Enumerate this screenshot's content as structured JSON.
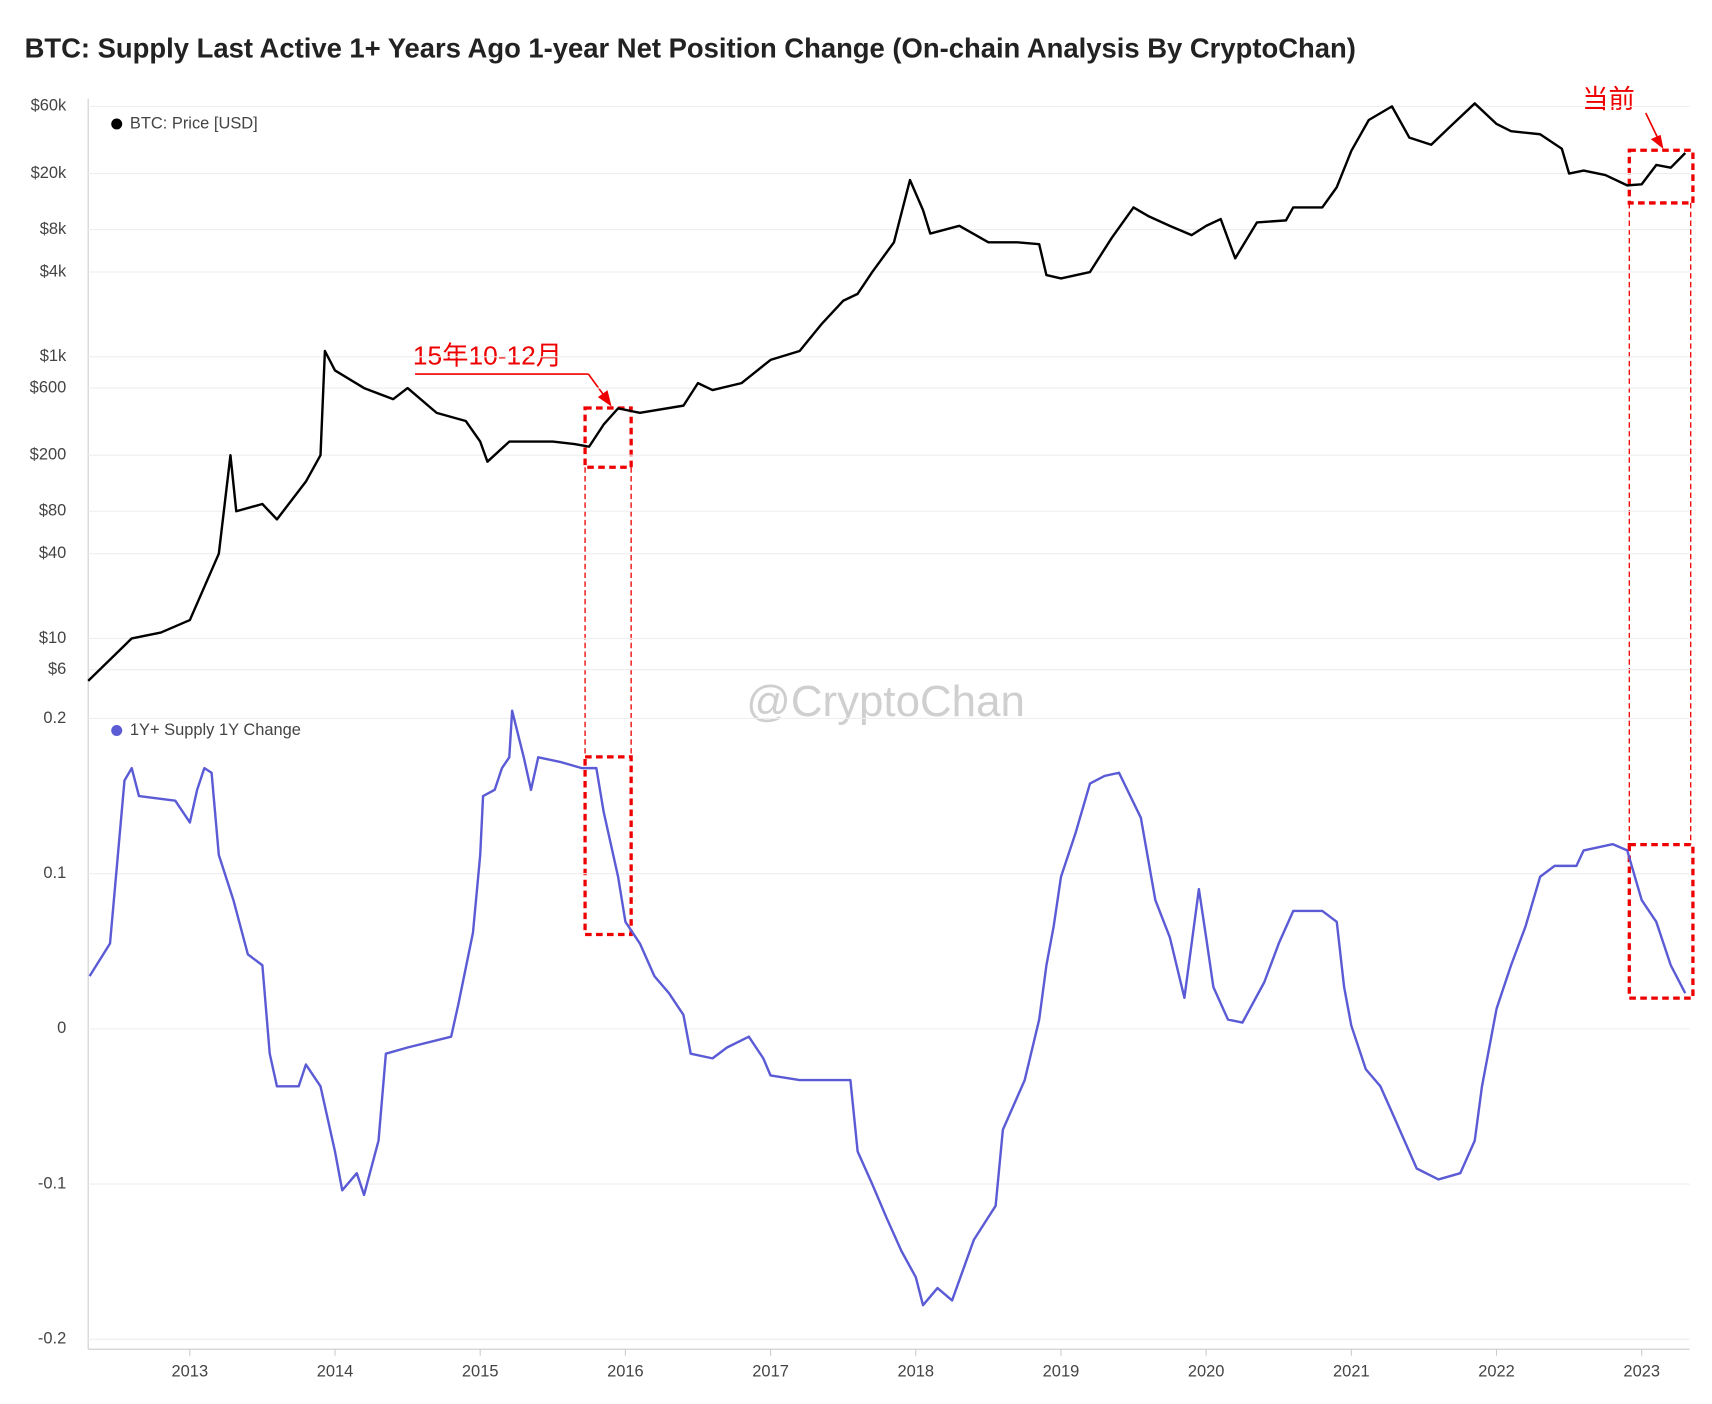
{
  "chart_data": [
    {
      "type": "line",
      "title": "BTC: Supply Last Active 1+ Years Ago 1-year Net Position Change (On-chain Analysis By CryptoChan)",
      "annotations": [
        "15年10-12月",
        "当前"
      ],
      "log": true,
      "grid": true,
      "xlim": [
        2012.3,
        2023.33
      ],
      "ylim": [
        3.8,
        68000
      ],
      "yticks": [
        {
          "value": 6,
          "label": "$6"
        },
        {
          "value": 10,
          "label": "$10"
        },
        {
          "value": 40,
          "label": "$40"
        },
        {
          "value": 80,
          "label": "$80"
        },
        {
          "value": 200,
          "label": "$200"
        },
        {
          "value": 600,
          "label": "$600"
        },
        {
          "value": 1000,
          "label": "$1k"
        },
        {
          "value": 4000,
          "label": "$4k"
        },
        {
          "value": 8000,
          "label": "$8k"
        },
        {
          "value": 20000,
          "label": "$20k"
        },
        {
          "value": 60000,
          "label": "$60k"
        }
      ],
      "x": [
        2012.3,
        2012.6,
        2012.8,
        2013.0,
        2013.2,
        2013.28,
        2013.32,
        2013.5,
        2013.6,
        2013.8,
        2013.9,
        2013.93,
        2014.0,
        2014.2,
        2014.4,
        2014.5,
        2014.7,
        2014.9,
        2015.0,
        2015.05,
        2015.2,
        2015.5,
        2015.65,
        2015.75,
        2015.85,
        2015.95,
        2016.1,
        2016.4,
        2016.5,
        2016.6,
        2016.8,
        2017.0,
        2017.2,
        2017.35,
        2017.5,
        2017.6,
        2017.7,
        2017.85,
        2017.96,
        2018.05,
        2018.1,
        2018.3,
        2018.5,
        2018.7,
        2018.85,
        2018.9,
        2019.0,
        2019.2,
        2019.35,
        2019.5,
        2019.6,
        2019.75,
        2019.9,
        2020.0,
        2020.1,
        2020.2,
        2020.35,
        2020.55,
        2020.6,
        2020.8,
        2020.9,
        2021.0,
        2021.12,
        2021.28,
        2021.4,
        2021.55,
        2021.7,
        2021.85,
        2022.0,
        2022.1,
        2022.3,
        2022.45,
        2022.5,
        2022.6,
        2022.75,
        2022.9,
        2023.0,
        2023.1,
        2023.2,
        2023.3
      ],
      "series": [
        {
          "name": "BTC: Price [USD]",
          "color": "#000000",
          "values": [
            5,
            10,
            11,
            13.5,
            40,
            200,
            80,
            90,
            70,
            130,
            200,
            1100,
            800,
            600,
            500,
            600,
            400,
            350,
            250,
            180,
            250,
            250,
            240,
            230,
            330,
            430,
            400,
            450,
            650,
            580,
            650,
            950,
            1100,
            1700,
            2500,
            2800,
            4000,
            6500,
            18000,
            11000,
            7500,
            8500,
            6500,
            6500,
            6300,
            3800,
            3600,
            4000,
            7000,
            11500,
            10000,
            8500,
            7300,
            8500,
            9500,
            5000,
            9000,
            9300,
            11500,
            11500,
            16000,
            29000,
            48000,
            60000,
            36000,
            32000,
            45000,
            63000,
            45000,
            40000,
            38000,
            30000,
            20000,
            21000,
            19500,
            16500,
            16800,
            23000,
            22000,
            28000
          ]
        }
      ]
    },
    {
      "type": "line",
      "watermark": "@CryptoChan",
      "grid": true,
      "xlim": [
        2012.3,
        2023.33
      ],
      "xticks": [
        2013,
        2014,
        2015,
        2016,
        2017,
        2018,
        2019,
        2020,
        2021,
        2022,
        2023
      ],
      "ylim": [
        -0.2,
        0.2
      ],
      "yticks": [
        -0.2,
        -0.1,
        0,
        0.1,
        0.2
      ],
      "x": [
        2012.31,
        2012.45,
        2012.55,
        2012.6,
        2012.65,
        2012.9,
        2013.0,
        2013.05,
        2013.1,
        2013.15,
        2013.2,
        2013.3,
        2013.4,
        2013.5,
        2013.55,
        2013.6,
        2013.75,
        2013.8,
        2013.9,
        2014.0,
        2014.05,
        2014.15,
        2014.2,
        2014.3,
        2014.35,
        2014.5,
        2014.8,
        2014.85,
        2014.95,
        2015.0,
        2015.02,
        2015.1,
        2015.15,
        2015.2,
        2015.22,
        2015.3,
        2015.35,
        2015.4,
        2015.55,
        2015.7,
        2015.8,
        2015.85,
        2015.95,
        2016.0,
        2016.1,
        2016.2,
        2016.3,
        2016.4,
        2016.45,
        2016.6,
        2016.7,
        2016.85,
        2016.95,
        2017.0,
        2017.2,
        2017.4,
        2017.55,
        2017.6,
        2017.7,
        2017.8,
        2017.9,
        2018.0,
        2018.05,
        2018.15,
        2018.25,
        2018.4,
        2018.55,
        2018.6,
        2018.75,
        2018.85,
        2018.9,
        2018.95,
        2019.0,
        2019.1,
        2019.2,
        2019.3,
        2019.4,
        2019.55,
        2019.65,
        2019.75,
        2019.85,
        2019.95,
        2020.0,
        2020.05,
        2020.15,
        2020.25,
        2020.4,
        2020.5,
        2020.6,
        2020.8,
        2020.9,
        2020.95,
        2021.0,
        2021.1,
        2021.2,
        2021.3,
        2021.45,
        2021.6,
        2021.75,
        2021.85,
        2021.9,
        2022.0,
        2022.1,
        2022.2,
        2022.3,
        2022.4,
        2022.55,
        2022.6,
        2022.8,
        2022.9,
        2023.0,
        2023.1,
        2023.15,
        2023.2,
        2023.3
      ],
      "series": [
        {
          "name": "1Y+ Supply 1Y Change",
          "color": "#5b5bd6",
          "values": [
            0.034,
            0.055,
            0.16,
            0.168,
            0.15,
            0.147,
            0.133,
            0.154,
            0.168,
            0.165,
            0.112,
            0.083,
            0.048,
            0.041,
            -0.016,
            -0.037,
            -0.037,
            -0.023,
            -0.037,
            -0.079,
            -0.104,
            -0.093,
            -0.107,
            -0.072,
            -0.016,
            -0.012,
            -0.005,
            0.016,
            0.062,
            0.112,
            0.15,
            0.154,
            0.168,
            0.175,
            0.205,
            0.175,
            0.154,
            0.175,
            0.172,
            0.168,
            0.168,
            0.14,
            0.098,
            0.069,
            0.055,
            0.034,
            0.023,
            0.009,
            -0.016,
            -0.019,
            -0.012,
            -0.005,
            -0.019,
            -0.03,
            -0.033,
            -0.033,
            -0.033,
            -0.079,
            -0.1,
            -0.122,
            -0.143,
            -0.16,
            -0.178,
            -0.167,
            -0.175,
            -0.136,
            -0.114,
            -0.065,
            -0.033,
            0.006,
            0.041,
            0.066,
            0.098,
            0.126,
            0.158,
            0.163,
            0.165,
            0.136,
            0.083,
            0.059,
            0.02,
            0.09,
            0.059,
            0.027,
            0.006,
            0.004,
            0.03,
            0.055,
            0.076,
            0.076,
            0.069,
            0.027,
            0.002,
            -0.026,
            -0.037,
            -0.058,
            -0.09,
            -0.097,
            -0.093,
            -0.072,
            -0.037,
            0.013,
            0.041,
            0.066,
            0.098,
            0.105,
            0.105,
            0.115,
            0.119,
            0.115,
            0.083,
            0.069,
            0.055,
            0.041,
            0.023
          ]
        }
      ]
    }
  ]
}
